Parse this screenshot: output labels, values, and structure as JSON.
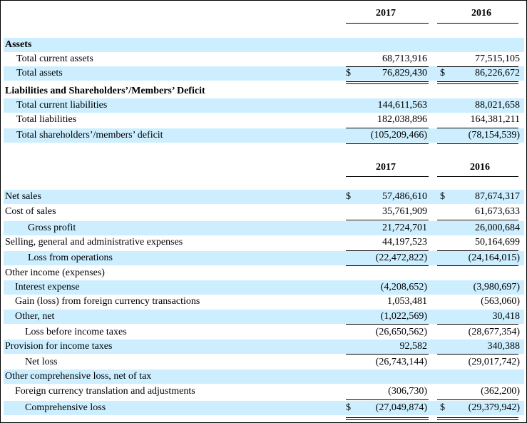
{
  "balance": {
    "years": [
      "2017",
      "2016"
    ],
    "assets_heading": "Assets",
    "liab_heading": "Liabilities and Shareholders’/Members’ Deficit",
    "rows": [
      {
        "label": "Total current assets",
        "c1": "",
        "v1": "68,713,916",
        "c2": "",
        "v2": "77,515,105"
      },
      {
        "label": "Total assets",
        "c1": "$",
        "v1": "76,829,430",
        "c2": "$",
        "v2": "86,226,672"
      },
      {
        "label": "Total current liabilities",
        "c1": "",
        "v1": "144,611,563",
        "c2": "",
        "v2": "88,021,658"
      },
      {
        "label": "Total liabilities",
        "c1": "",
        "v1": "182,038,896",
        "c2": "",
        "v2": "164,381,211"
      },
      {
        "label": "Total shareholders’/members’ deficit",
        "c1": "",
        "v1": "(105,209,466)",
        "c2": "",
        "v2": "(78,154,539)"
      }
    ]
  },
  "income": {
    "years": [
      "2017",
      "2016"
    ],
    "rows": [
      {
        "label": "Net sales",
        "c1": "$",
        "v1": "57,486,610",
        "c2": "$",
        "v2": "87,674,317"
      },
      {
        "label": "Cost of sales",
        "c1": "",
        "v1": "35,761,909",
        "c2": "",
        "v2": "61,673,633"
      },
      {
        "label": "Gross profit",
        "c1": "",
        "v1": "21,724,701",
        "c2": "",
        "v2": "26,000,684"
      },
      {
        "label": "Selling, general and administrative expenses",
        "c1": "",
        "v1": "44,197,523",
        "c2": "",
        "v2": "50,164,699"
      },
      {
        "label": "Loss from operations",
        "c1": "",
        "v1": "(22,472,822)",
        "c2": "",
        "v2": "(24,164,015)"
      },
      {
        "label": "Other income (expenses)",
        "c1": "",
        "v1": "",
        "c2": "",
        "v2": ""
      },
      {
        "label": "Interest expense",
        "c1": "",
        "v1": "(4,208,652)",
        "c2": "",
        "v2": "(3,980,697)"
      },
      {
        "label": "Gain (loss) from foreign currency transactions",
        "c1": "",
        "v1": "1,053,481",
        "c2": "",
        "v2": "(563,060)"
      },
      {
        "label": "Other, net",
        "c1": "",
        "v1": "(1,022,569)",
        "c2": "",
        "v2": "30,418"
      },
      {
        "label": "Loss before income taxes",
        "c1": "",
        "v1": "(26,650,562)",
        "c2": "",
        "v2": "(28,677,354)"
      },
      {
        "label": "Provision for income taxes",
        "c1": "",
        "v1": "92,582",
        "c2": "",
        "v2": "340,388"
      },
      {
        "label": "Net loss",
        "c1": "",
        "v1": "(26,743,144)",
        "c2": "",
        "v2": "(29,017,742)"
      },
      {
        "label": "Other comprehensive loss, net of tax",
        "c1": "",
        "v1": "",
        "c2": "",
        "v2": ""
      },
      {
        "label": "Foreign currency translation and adjustments",
        "c1": "",
        "v1": "(306,730)",
        "c2": "",
        "v2": "(362,200)"
      },
      {
        "label": "Comprehensive loss",
        "c1": "$",
        "v1": "(27,049,874)",
        "c2": "$",
        "v2": "(29,379,942)"
      }
    ]
  }
}
